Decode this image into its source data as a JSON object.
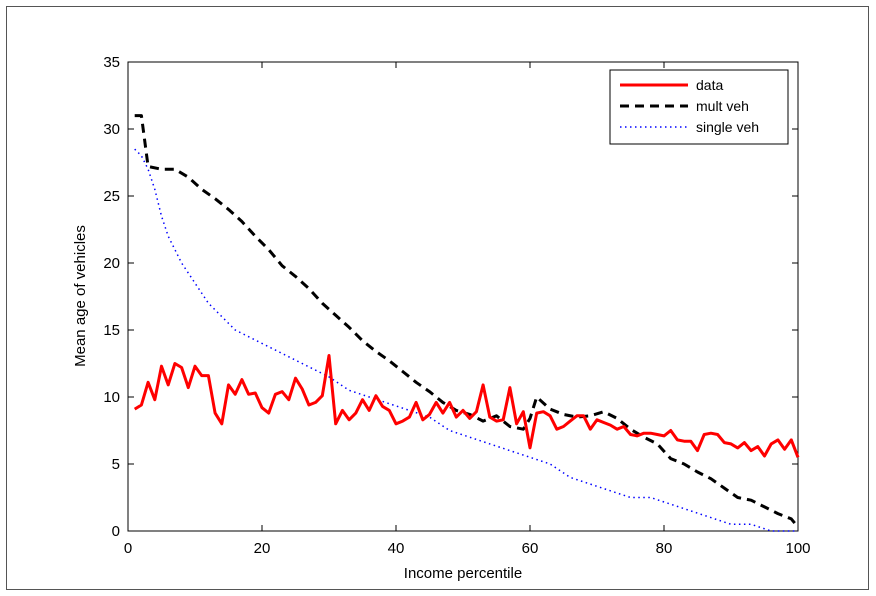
{
  "chart_data": {
    "type": "line",
    "title": "",
    "xlabel": "Income percentile",
    "ylabel": "Mean age of vehicles",
    "xlim": [
      0,
      100
    ],
    "ylim": [
      0,
      35
    ],
    "xticks": [
      0,
      20,
      40,
      60,
      80,
      100
    ],
    "yticks": [
      0,
      5,
      10,
      15,
      20,
      25,
      30,
      35
    ],
    "grid": false,
    "legend_position": "top-right",
    "series": [
      {
        "name": "data",
        "color": "#ff0000",
        "style": "solid",
        "x": [
          1,
          2,
          3,
          4,
          5,
          6,
          7,
          8,
          9,
          10,
          11,
          12,
          13,
          14,
          15,
          16,
          17,
          18,
          19,
          20,
          21,
          22,
          23,
          24,
          25,
          26,
          27,
          28,
          29,
          30,
          31,
          32,
          33,
          34,
          35,
          36,
          37,
          38,
          39,
          40,
          41,
          42,
          43,
          44,
          45,
          46,
          47,
          48,
          49,
          50,
          51,
          52,
          53,
          54,
          55,
          56,
          57,
          58,
          59,
          60,
          61,
          62,
          63,
          64,
          65,
          66,
          67,
          68,
          69,
          70,
          71,
          72,
          73,
          74,
          75,
          76,
          77,
          78,
          79,
          80,
          81,
          82,
          83,
          84,
          85,
          86,
          87,
          88,
          89,
          90,
          91,
          92,
          93,
          94,
          95,
          96,
          97,
          98,
          99,
          100
        ],
        "values": [
          9.1,
          9.4,
          11.1,
          9.8,
          12.3,
          10.9,
          12.5,
          12.2,
          10.7,
          12.3,
          11.6,
          11.6,
          8.8,
          8.0,
          10.9,
          10.2,
          11.3,
          10.2,
          10.3,
          9.2,
          8.8,
          10.2,
          10.4,
          9.8,
          11.4,
          10.6,
          9.4,
          9.6,
          10.1,
          13.1,
          8.0,
          9.0,
          8.3,
          8.8,
          9.8,
          9.0,
          10.1,
          9.3,
          9.0,
          8.0,
          8.2,
          8.5,
          9.6,
          8.3,
          8.7,
          9.6,
          8.8,
          9.6,
          8.5,
          9.0,
          8.4,
          8.9,
          10.9,
          8.5,
          8.2,
          8.3,
          10.7,
          8.0,
          8.9,
          6.2,
          8.8,
          8.9,
          8.6,
          7.6,
          7.8,
          8.2,
          8.6,
          8.6,
          7.6,
          8.3,
          8.1,
          7.9,
          7.6,
          7.8,
          7.2,
          7.1,
          7.3,
          7.3,
          7.2,
          7.1,
          7.5,
          6.8,
          6.7,
          6.7,
          6.0,
          7.2,
          7.3,
          7.2,
          6.6,
          6.5,
          6.2,
          6.6,
          6.0,
          6.3,
          5.6,
          6.5,
          6.8,
          6.1,
          6.8,
          5.5
        ]
      },
      {
        "name": "mult veh",
        "color": "#000000",
        "style": "dashed",
        "x": [
          1,
          2,
          3,
          5,
          7,
          9,
          11,
          13,
          15,
          17,
          19,
          21,
          23,
          25,
          27,
          29,
          31,
          33,
          35,
          37,
          39,
          41,
          43,
          45,
          47,
          49,
          51,
          53,
          55,
          57,
          59,
          60,
          61,
          63,
          65,
          67,
          69,
          71,
          73,
          75,
          77,
          79,
          81,
          83,
          85,
          87,
          89,
          91,
          93,
          95,
          97,
          99,
          100
        ],
        "values": [
          31,
          31,
          27.2,
          27.0,
          27.0,
          26.4,
          25.5,
          24.8,
          24.0,
          23.1,
          22.0,
          21.0,
          19.8,
          19.0,
          18.1,
          17.0,
          16.1,
          15.2,
          14.2,
          13.4,
          12.7,
          11.9,
          11.1,
          10.4,
          9.6,
          9.0,
          8.7,
          8.2,
          8.6,
          7.8,
          7.6,
          8.4,
          10.0,
          9.1,
          8.7,
          8.5,
          8.6,
          8.9,
          8.4,
          7.6,
          7.0,
          6.5,
          5.4,
          5.0,
          4.4,
          3.9,
          3.2,
          2.5,
          2.3,
          1.8,
          1.3,
          0.9,
          0.3
        ]
      },
      {
        "name": "single veh",
        "color": "#0000ff",
        "style": "dotted",
        "x": [
          1,
          2,
          3,
          4,
          5,
          6,
          7,
          8,
          10,
          12,
          14,
          16,
          18,
          20,
          22,
          24,
          26,
          28,
          30,
          33,
          36,
          39,
          42,
          45,
          48,
          51,
          54,
          57,
          60,
          63,
          66,
          69,
          72,
          75,
          78,
          81,
          84,
          87,
          90,
          93,
          96,
          98,
          100
        ],
        "values": [
          28.5,
          28.0,
          27.0,
          25.5,
          23.5,
          22.0,
          21.0,
          20.0,
          18.5,
          17.0,
          16.0,
          15.0,
          14.5,
          14.0,
          13.5,
          13.0,
          12.5,
          12.0,
          11.5,
          10.5,
          10.0,
          9.5,
          9.0,
          8.5,
          7.5,
          7.0,
          6.5,
          6.0,
          5.5,
          5.0,
          4.0,
          3.5,
          3.0,
          2.5,
          2.5,
          2.0,
          1.5,
          1.0,
          0.5,
          0.5,
          0.0,
          0.0,
          0.0
        ]
      }
    ]
  }
}
